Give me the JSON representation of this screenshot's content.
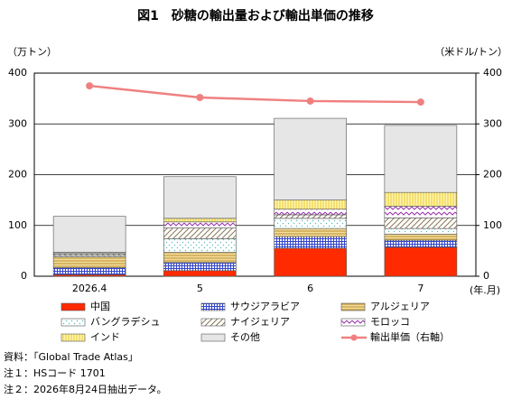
{
  "chart_data": {
    "type": "bar",
    "stacked": true,
    "title": "図1　砂糖の輸出量および輸出単価の推移",
    "y_label": "（万トン）",
    "y2_label": "（米ドル/トン）",
    "x_label": "(年.月)",
    "categories": [
      "2026.4",
      "5",
      "6",
      "7"
    ],
    "ylim": [
      0,
      400
    ],
    "yticks": [
      0,
      100,
      200,
      300,
      400
    ],
    "y2lim": [
      0,
      400
    ],
    "y2ticks": [
      0,
      100,
      200,
      300,
      400
    ],
    "grid": true,
    "series": [
      {
        "name": "中国",
        "color": "#ff2a00",
        "values": [
          3,
          11,
          55,
          57
        ]
      },
      {
        "name": "サウジアラビア",
        "color": "#3344cc",
        "values": [
          14,
          16,
          23,
          14
        ]
      },
      {
        "name": "アルジェリア",
        "color": "#b89030",
        "values": [
          21,
          20,
          16,
          12
        ]
      },
      {
        "name": "バングラデシュ",
        "color": "#55bbbb",
        "values": [
          3,
          27,
          20,
          11
        ]
      },
      {
        "name": "ナイジェリア",
        "color": "#887755",
        "values": [
          3,
          21,
          7,
          21
        ]
      },
      {
        "name": "モロッコ",
        "color": "#9933aa",
        "values": [
          2,
          12,
          11,
          23
        ]
      },
      {
        "name": "インド",
        "color": "#e8c830",
        "values": [
          1,
          7,
          18,
          27
        ]
      },
      {
        "name": "その他",
        "color": "#e6e6e6",
        "values": [
          71,
          82,
          161,
          132
        ]
      },
      {
        "name": "輸出単価（右軸）",
        "color": "#f08080",
        "type": "line",
        "axis": "y2",
        "values": [
          375,
          352,
          345,
          343
        ]
      }
    ],
    "notes": [
      "資料：「Global Trade Atlas」",
      "注１：HSコード 1701",
      "注２：2026年8月24日抽出データ。"
    ]
  }
}
